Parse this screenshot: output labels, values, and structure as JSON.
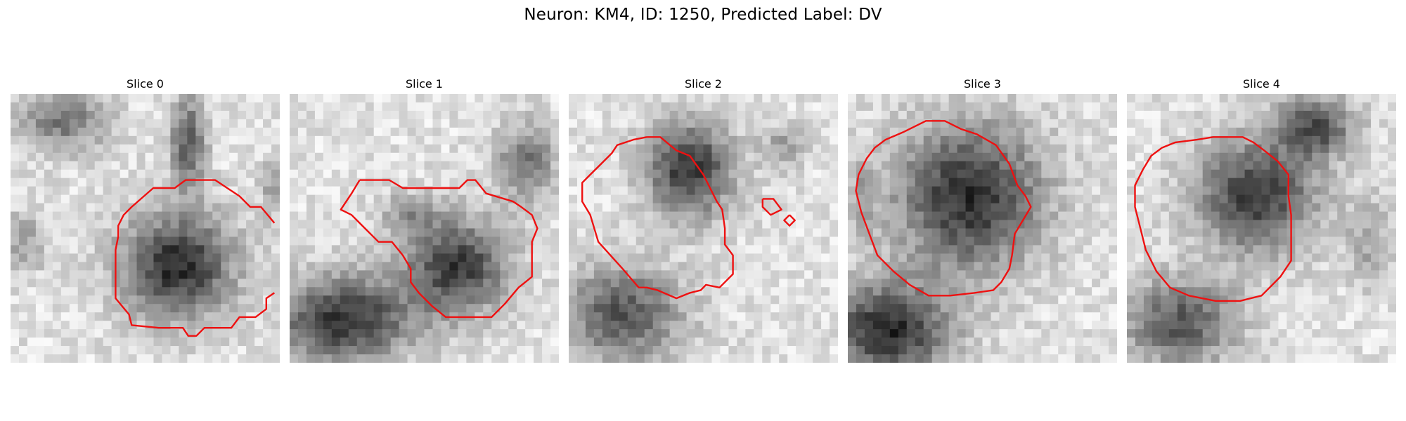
{
  "figure": {
    "title": "Neuron: KM4, ID: 1250, Predicted Label: DV"
  },
  "contour_color": "#ee1111",
  "panels": [
    {
      "label": "Slice 0"
    },
    {
      "label": "Slice 1"
    },
    {
      "label": "Slice 2"
    },
    {
      "label": "Slice 3"
    },
    {
      "label": "Slice 4"
    }
  ]
}
